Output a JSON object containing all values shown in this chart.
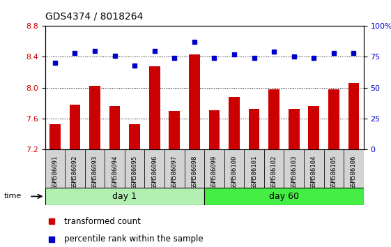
{
  "title": "GDS4374 / 8018264",
  "samples": [
    "GSM586091",
    "GSM586092",
    "GSM586093",
    "GSM586094",
    "GSM586095",
    "GSM586096",
    "GSM586097",
    "GSM586098",
    "GSM586099",
    "GSM586100",
    "GSM586101",
    "GSM586102",
    "GSM586103",
    "GSM586104",
    "GSM586105",
    "GSM586106"
  ],
  "red_values": [
    7.53,
    7.78,
    8.02,
    7.76,
    7.53,
    8.28,
    7.7,
    8.43,
    7.71,
    7.88,
    7.73,
    7.98,
    7.73,
    7.76,
    7.98,
    8.06
  ],
  "blue_values": [
    70,
    78,
    80,
    76,
    68,
    80,
    74,
    87,
    74,
    77,
    74,
    79,
    75,
    74,
    78,
    78
  ],
  "ylim_left": [
    7.2,
    8.8
  ],
  "ylim_right": [
    0,
    100
  ],
  "yticks_left": [
    7.2,
    7.6,
    8.0,
    8.4,
    8.8
  ],
  "yticks_right": [
    0,
    25,
    50,
    75,
    100
  ],
  "ytick_labels_right": [
    "0",
    "25",
    "50",
    "75",
    "100%"
  ],
  "bar_color": "#cc0000",
  "dot_color": "#0000cc",
  "bar_bottom": 7.2,
  "group1_label": "day 1",
  "group2_label": "day 60",
  "group1_color": "#b2f0b2",
  "group2_color": "#44ee44",
  "legend_red": "transformed count",
  "legend_blue": "percentile rank within the sample",
  "time_label": "time"
}
